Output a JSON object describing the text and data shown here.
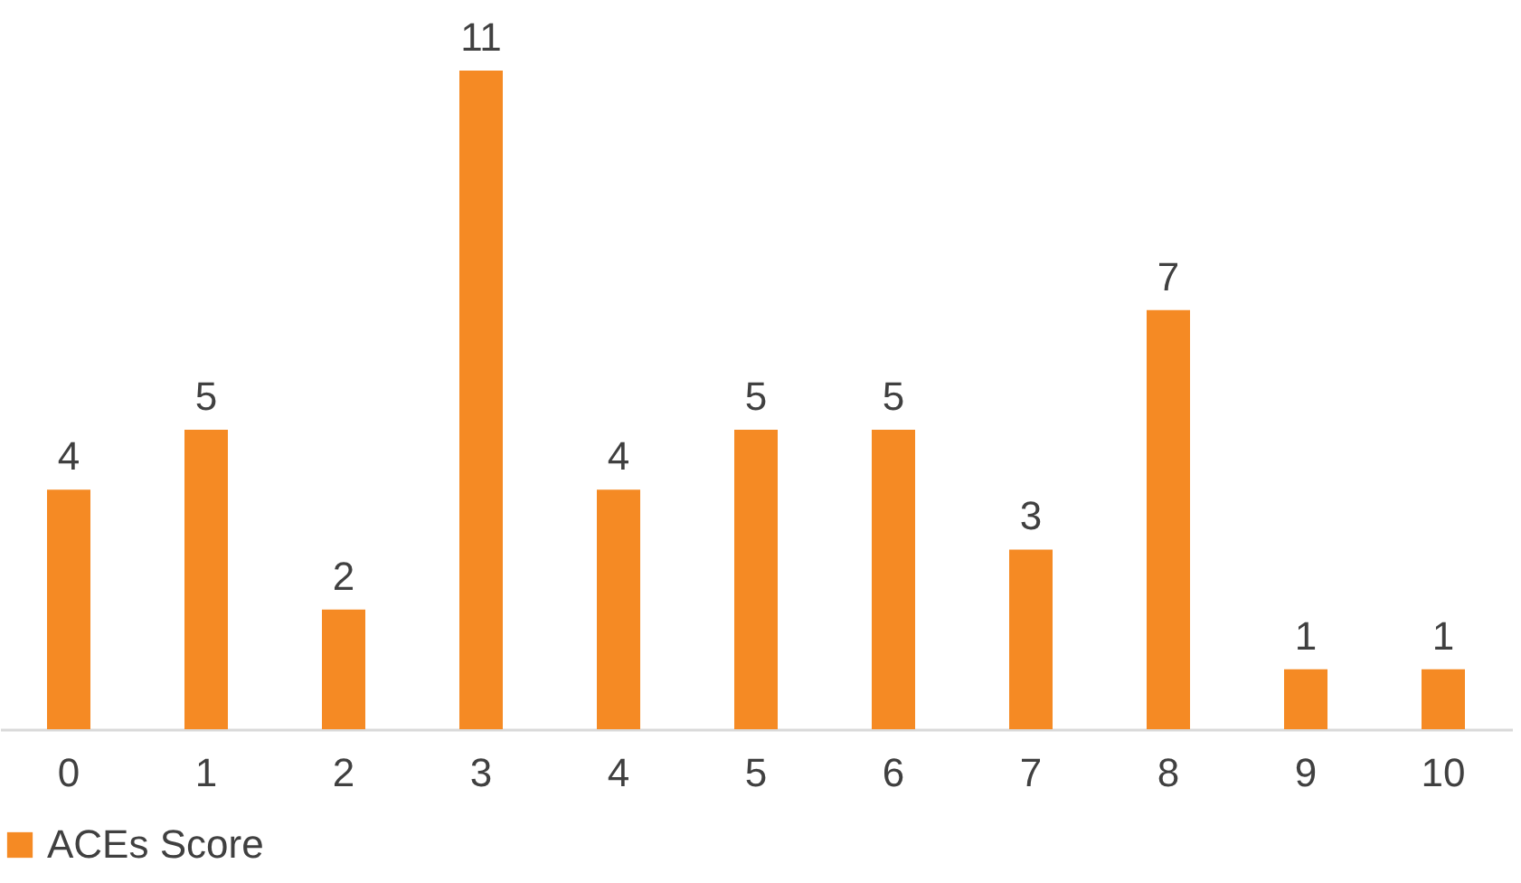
{
  "chart_data": {
    "type": "bar",
    "categories": [
      "0",
      "1",
      "2",
      "3",
      "4",
      "5",
      "6",
      "7",
      "8",
      "9",
      "10"
    ],
    "series": [
      {
        "name": "ACEs Score",
        "color": "#f58a24",
        "values": [
          4,
          5,
          2,
          11,
          4,
          5,
          5,
          3,
          7,
          1,
          1
        ]
      }
    ],
    "data_labels": true,
    "legend": "bottom"
  }
}
